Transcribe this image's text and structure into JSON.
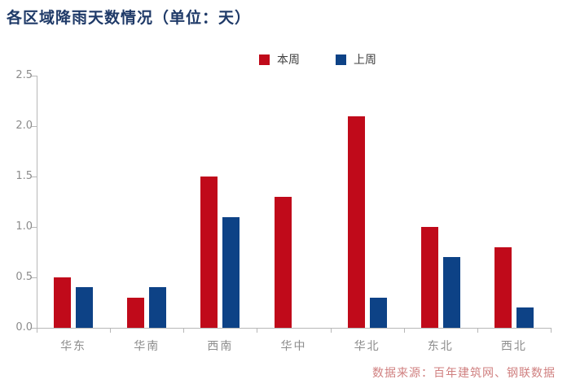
{
  "title": "各区域降雨天数情况（单位：天）",
  "source": "数据来源：百年建筑网、钢联数据",
  "colors": {
    "title": "#1f3a68",
    "this_week": "#c00a1a",
    "last_week": "#0d4286",
    "axis": "#b7b7b7",
    "tick_label": "#8c8c8c",
    "legend_text": "#404040",
    "source_text": "#d08080"
  },
  "chart_data": {
    "type": "bar",
    "title": "各区域降雨天数情况（单位：天）",
    "categories": [
      "华东",
      "华南",
      "西南",
      "华中",
      "华北",
      "东北",
      "西北"
    ],
    "series": [
      {
        "name": "本周",
        "color_key": "this_week",
        "values": [
          0.5,
          0.3,
          1.5,
          1.3,
          2.1,
          1.0,
          0.8
        ]
      },
      {
        "name": "上周",
        "color_key": "last_week",
        "values": [
          0.4,
          0.4,
          1.1,
          0.0,
          0.3,
          0.7,
          0.2
        ]
      }
    ],
    "xlabel": "",
    "ylabel": "",
    "ylim": [
      0,
      2.5
    ],
    "yticks": [
      "0.0",
      "0.5",
      "1.0",
      "1.5",
      "2.0",
      "2.5"
    ],
    "grid": false,
    "legend_position": "top-center"
  }
}
